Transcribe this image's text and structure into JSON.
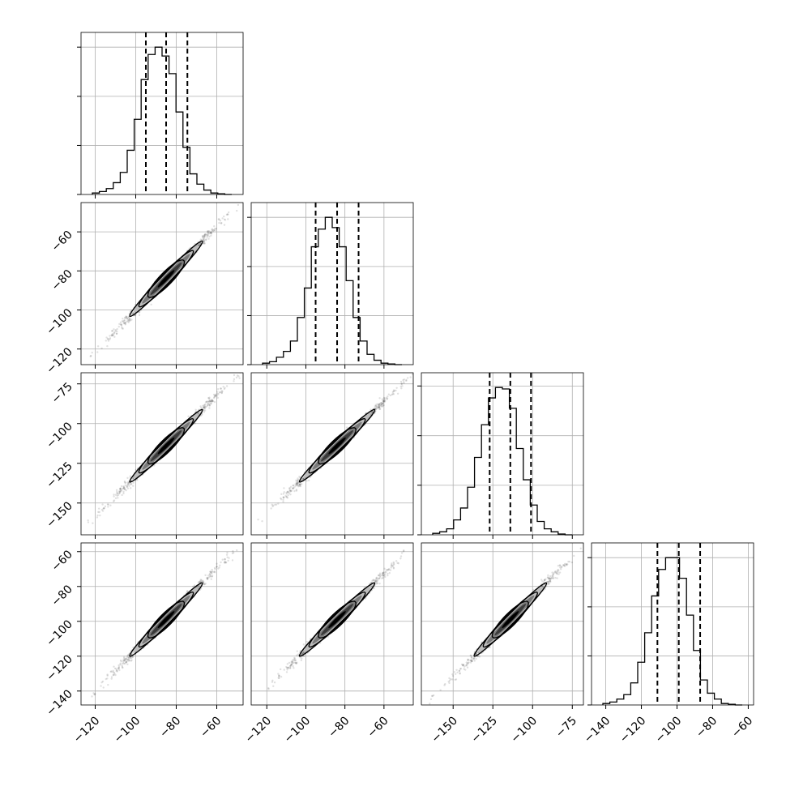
{
  "chart_data": {
    "type": "corner",
    "title": "",
    "n_params": 4,
    "params": [
      {
        "range": [
          -127,
          -47
        ],
        "ticks": [
          -120,
          -100,
          -80,
          -60
        ],
        "ylim_scatter": null,
        "yticks": [],
        "quantiles": [
          -95,
          -85,
          -74.5
        ],
        "hist": [
          0.01,
          0.02,
          0.04,
          0.08,
          0.15,
          0.3,
          0.51,
          0.78,
          0.95,
          1.0,
          0.94,
          0.82,
          0.56,
          0.32,
          0.14,
          0.07,
          0.03,
          0.01,
          0.005,
          0.0
        ]
      },
      {
        "range": [
          -128,
          -45
        ],
        "ticks": [
          -120,
          -100,
          -80,
          -60
        ],
        "ylim_scatter": [
          -128,
          -45
        ],
        "yticks": [
          -120,
          -100,
          -80,
          -60
        ],
        "quantiles": [
          -95,
          -84,
          -73
        ],
        "hist": [
          0.01,
          0.02,
          0.05,
          0.09,
          0.16,
          0.32,
          0.52,
          0.8,
          0.92,
          1.0,
          0.93,
          0.8,
          0.57,
          0.32,
          0.16,
          0.07,
          0.03,
          0.01,
          0.005,
          0.0
        ]
      },
      {
        "range": [
          -170,
          -68
        ],
        "ticks": [
          -150,
          -125,
          -100,
          -75
        ],
        "ylim_scatter": [
          -170,
          -68
        ],
        "yticks": [
          -150,
          -125,
          -100,
          -75
        ],
        "quantiles": [
          -127,
          -114,
          -101
        ],
        "hist": [
          0.01,
          0.02,
          0.04,
          0.1,
          0.18,
          0.32,
          0.52,
          0.74,
          0.92,
          0.99,
          0.98,
          0.85,
          0.58,
          0.37,
          0.2,
          0.09,
          0.04,
          0.02,
          0.005,
          0.0
        ]
      },
      {
        "range": [
          -148,
          -57
        ],
        "ticks": [
          -140,
          -120,
          -100,
          -80,
          -60
        ],
        "ylim_scatter": [
          -148,
          -55
        ],
        "yticks": [
          -140,
          -120,
          -100,
          -80,
          -60
        ],
        "quantiles": [
          -111,
          -99,
          -87
        ],
        "hist": [
          0.01,
          0.02,
          0.04,
          0.07,
          0.15,
          0.29,
          0.49,
          0.74,
          0.92,
          1.0,
          1.0,
          0.86,
          0.61,
          0.37,
          0.17,
          0.08,
          0.04,
          0.01,
          0.005,
          0.0
        ]
      }
    ],
    "grid": true,
    "contour_levels": 3
  }
}
